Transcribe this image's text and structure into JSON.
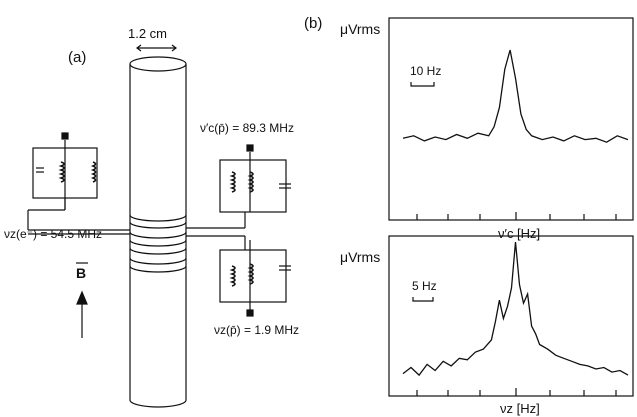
{
  "panel_a": {
    "label": "(a)",
    "dimension": "1.2 cm",
    "freq_cyclotron": "ν′c(p̄) = 89.3 MHz",
    "freq_electron": "νz(e⁻) = 54.5 MHz",
    "freq_axial": "νz(p̄) = 1.9 MHz",
    "field": "B",
    "icons": [
      "trap-electrode-stack",
      "lc-resonant-circuit",
      "field-arrow"
    ]
  },
  "panel_b": {
    "label": "(b)",
    "top": {
      "ylabel": "μVrms",
      "scale_label": "10 Hz",
      "xlabel": "ν′c [Hz]"
    },
    "bottom": {
      "ylabel": "μVrms",
      "scale_label": "5 Hz",
      "xlabel": "νz [Hz]"
    }
  },
  "chart_data": [
    {
      "type": "line",
      "ylabel": "μVrms",
      "xlabel": "ν′c [Hz]",
      "annotations": [
        "10 Hz"
      ],
      "x": [
        -10,
        -9,
        -8,
        -7,
        -6,
        -5,
        -4,
        -3,
        -2,
        -1.5,
        -1,
        -0.5,
        0,
        0.5,
        1,
        1.5,
        2,
        3,
        4,
        5,
        6,
        7,
        8,
        9,
        10,
        11
      ],
      "y": [
        0.31,
        0.33,
        0.29,
        0.32,
        0.3,
        0.34,
        0.31,
        0.35,
        0.33,
        0.4,
        0.55,
        0.85,
        1.0,
        0.78,
        0.5,
        0.38,
        0.33,
        0.3,
        0.32,
        0.29,
        0.33,
        0.3,
        0.31,
        0.28,
        0.33,
        0.3
      ]
    },
    {
      "type": "line",
      "ylabel": "μVrms",
      "xlabel": "νz [Hz]",
      "annotations": [
        "5 Hz"
      ],
      "x": [
        -14,
        -13,
        -12,
        -11,
        -10,
        -9,
        -8,
        -7,
        -6,
        -5,
        -4,
        -3,
        -2.5,
        -2,
        -1.5,
        -1,
        -0.5,
        0,
        0.5,
        1,
        1.5,
        2,
        2.5,
        3,
        4,
        5,
        6,
        7,
        8,
        9,
        10,
        11,
        12,
        13,
        14
      ],
      "y": [
        0.14,
        0.18,
        0.13,
        0.2,
        0.16,
        0.22,
        0.19,
        0.24,
        0.23,
        0.28,
        0.3,
        0.36,
        0.48,
        0.62,
        0.5,
        0.58,
        0.7,
        1.0,
        0.72,
        0.6,
        0.66,
        0.45,
        0.4,
        0.33,
        0.3,
        0.26,
        0.24,
        0.22,
        0.2,
        0.19,
        0.17,
        0.18,
        0.15,
        0.16,
        0.13
      ]
    }
  ]
}
